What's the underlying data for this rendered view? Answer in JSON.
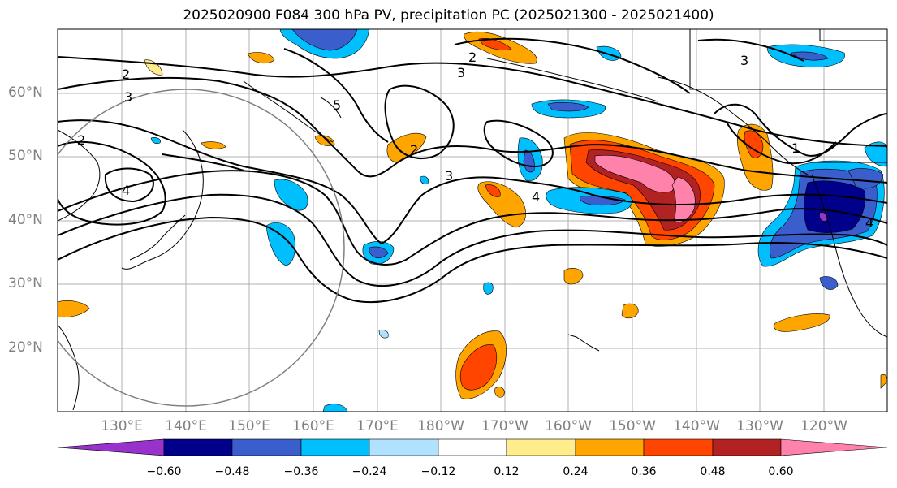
{
  "title": "2025020900 F084 300 hPa PV, precipitation PC (2025021300 - 2025021400)",
  "lat_labels": [
    "60°N",
    "50°N",
    "40°N",
    "30°N",
    "20°N"
  ],
  "lon_labels": [
    "130°E",
    "140°E",
    "150°E",
    "160°E",
    "170°E",
    "180°W",
    "170°W",
    "160°W",
    "150°W",
    "140°W",
    "130°W",
    "120°W"
  ],
  "contour_labels": [
    "2",
    "3",
    "2",
    "3",
    "4",
    "5",
    "2",
    "4",
    "3",
    "2",
    "3",
    "1",
    "4"
  ],
  "colorbar": {
    "ticks": [
      "−0.60",
      "−0.48",
      "−0.36",
      "−0.24",
      "−0.12",
      "0.12",
      "0.24",
      "0.36",
      "0.48",
      "0.60"
    ],
    "colors": [
      "#9932CC",
      "#00008B",
      "#3A5FCD",
      "#00BFFF",
      "#B0E2FF",
      "#FFFFFF",
      "#FFEC8B",
      "#FFA500",
      "#FF4500",
      "#B22222",
      "#FF82AB"
    ]
  }
}
